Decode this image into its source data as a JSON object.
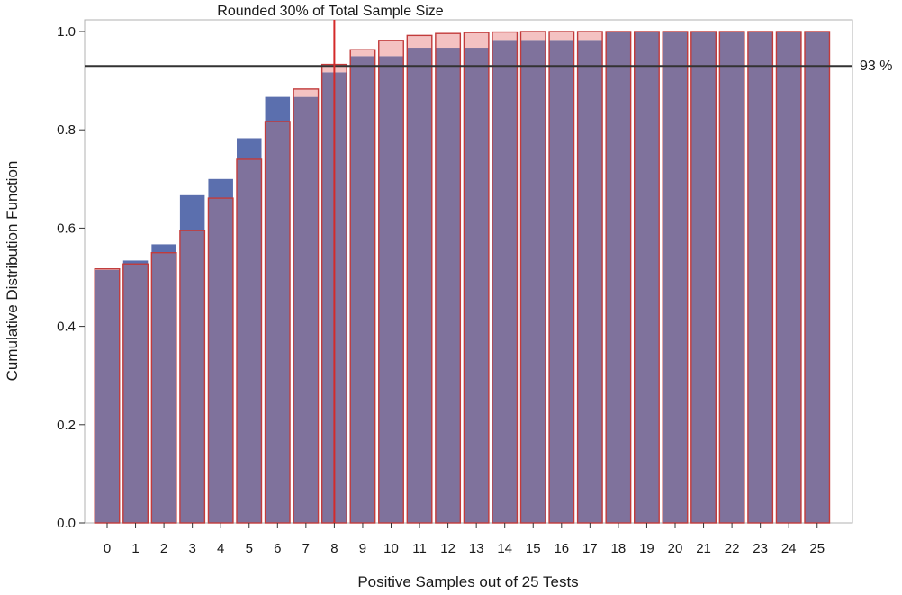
{
  "chart_data": {
    "type": "bar",
    "title": "",
    "xlabel": "Positive Samples out of 25 Tests",
    "ylabel": "Cumulative Distribution Function",
    "ylim": [
      0,
      1.0
    ],
    "yticks": [
      "0.0",
      "0.2",
      "0.4",
      "0.6",
      "0.8",
      "1.0"
    ],
    "categories": [
      "0",
      "1",
      "2",
      "3",
      "4",
      "5",
      "6",
      "7",
      "8",
      "9",
      "10",
      "11",
      "12",
      "13",
      "14",
      "15",
      "16",
      "17",
      "18",
      "19",
      "20",
      "21",
      "22",
      "23",
      "24",
      "25"
    ],
    "series": [
      {
        "color": "#5b6fae",
        "values": [
          0.515,
          0.534,
          0.567,
          0.667,
          0.7,
          0.783,
          0.867,
          0.867,
          0.917,
          0.95,
          0.95,
          0.967,
          0.967,
          0.967,
          0.983,
          0.983,
          0.983,
          0.983,
          1.0,
          1.0,
          1.0,
          1.0,
          1.0,
          1.0,
          1.0,
          1.0
        ]
      },
      {
        "color": "#f4c2c2",
        "edge_color": "#c23b3b",
        "values": [
          0.517,
          0.527,
          0.55,
          0.595,
          0.661,
          0.74,
          0.817,
          0.883,
          0.933,
          0.963,
          0.982,
          0.992,
          0.996,
          0.998,
          0.999,
          1.0,
          1.0,
          1.0,
          1.0,
          1.0,
          1.0,
          1.0,
          1.0,
          1.0,
          1.0,
          1.0
        ]
      }
    ],
    "reference_lines": {
      "horizontal": {
        "value": 0.93,
        "label": "93 %",
        "color": "#333333"
      },
      "vertical": {
        "category": "8",
        "label": "Rounded 30% of Total Sample Size",
        "color": "#d42a2a"
      }
    },
    "overlap_color": "#7f729c",
    "grid": false,
    "legend": "none"
  }
}
